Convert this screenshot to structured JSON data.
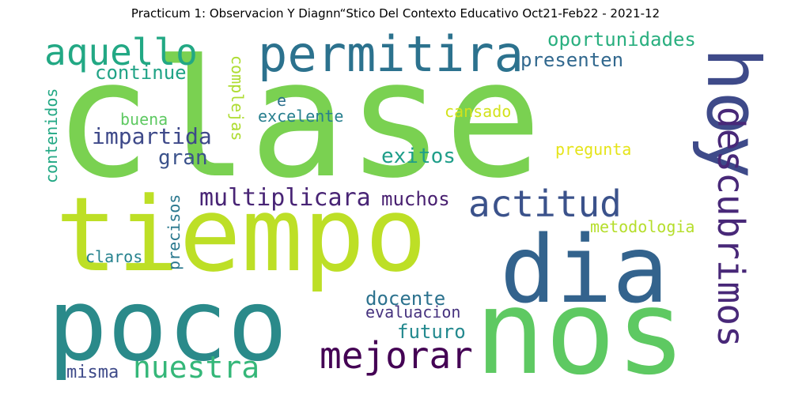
{
  "title": "Practicum 1: Observacion Y Diagnn“Stico Del Contexto Educativo Oct21-Feb22 - 2021-12",
  "words": [
    {
      "text": "clase",
      "color": "#7ad151"
    },
    {
      "text": "tiempo",
      "color": "#bddf26"
    },
    {
      "text": "nos",
      "color": "#5ec962"
    },
    {
      "text": "poco",
      "color": "#2a8a8a"
    },
    {
      "text": "dia",
      "color": "#33638d"
    },
    {
      "text": "hoy",
      "color": "#3e4a89"
    },
    {
      "text": "permitira",
      "color": "#2c728e"
    },
    {
      "text": "descubrimos",
      "color": "#482878"
    },
    {
      "text": "aquello",
      "color": "#22a884"
    },
    {
      "text": "actitud",
      "color": "#3b528b"
    },
    {
      "text": "mejorar",
      "color": "#440154"
    },
    {
      "text": "nuestra",
      "color": "#35b779"
    },
    {
      "text": "multiplicara",
      "color": "#482475"
    },
    {
      "text": "oportunidades",
      "color": "#29af7f"
    },
    {
      "text": "presenten",
      "color": "#31688e"
    },
    {
      "text": "continue",
      "color": "#20a386"
    },
    {
      "text": "impartida",
      "color": "#3e4989"
    },
    {
      "text": "exitos",
      "color": "#1f9e89"
    },
    {
      "text": "muchos",
      "color": "#481f70"
    },
    {
      "text": "gran",
      "color": "#3b528b"
    },
    {
      "text": "docente",
      "color": "#2c728e"
    },
    {
      "text": "evaluacion",
      "color": "#46327e"
    },
    {
      "text": "futuro",
      "color": "#23898e"
    },
    {
      "text": "misma",
      "color": "#3e4a89"
    },
    {
      "text": "excelente",
      "color": "#277f8e"
    },
    {
      "text": "buena",
      "color": "#5ec962"
    },
    {
      "text": "cansado",
      "color": "#d2e21b"
    },
    {
      "text": "pregunta",
      "color": "#e5e419"
    },
    {
      "text": "metodologia",
      "color": "#b5de2b"
    },
    {
      "text": "claros",
      "color": "#26828e"
    },
    {
      "text": "precisos",
      "color": "#2a788e"
    },
    {
      "text": "complejas",
      "color": "#addc30"
    },
    {
      "text": "contenidos",
      "color": "#22a884"
    },
    {
      "text": "e",
      "color": "#2d708e"
    }
  ]
}
